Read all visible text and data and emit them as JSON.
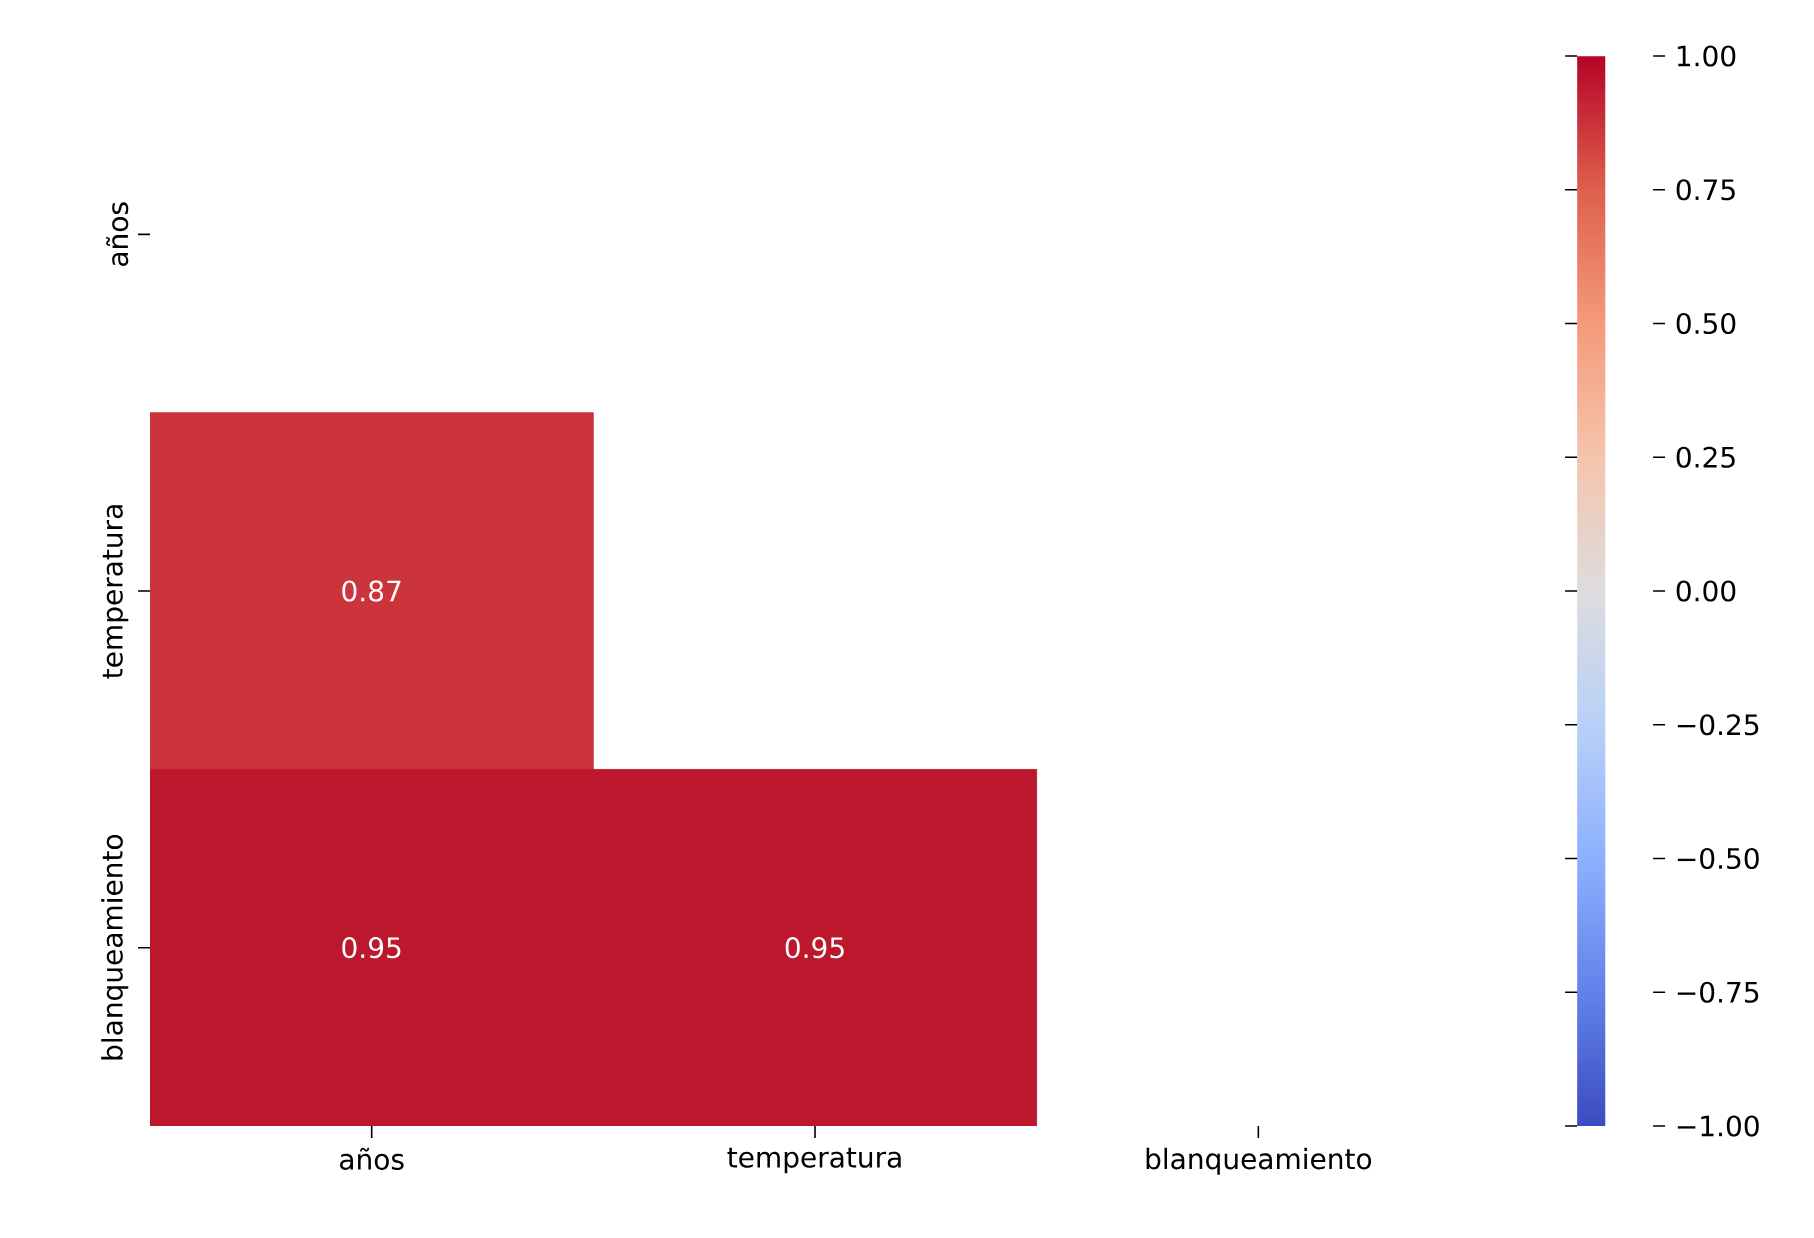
{
  "chart_data": {
    "type": "heatmap",
    "categories": [
      "años",
      "temperatura",
      "blanqueamiento"
    ],
    "y_categories": [
      "años",
      "temperatura",
      "blanqueamiento"
    ],
    "cells": [
      [
        null,
        null,
        null
      ],
      [
        0.87,
        null,
        null
      ],
      [
        0.95,
        0.95,
        null
      ]
    ],
    "data_labels": true,
    "clim": [
      -1,
      1
    ],
    "cticks": [
      {
        "value": -1,
        "label": "−1.00"
      },
      {
        "value": -0.75,
        "label": "−0.75"
      },
      {
        "value": -0.5,
        "label": "−0.50"
      },
      {
        "value": -0.25,
        "label": "−0.25"
      },
      {
        "value": 0,
        "label": "0.00"
      },
      {
        "value": 0.25,
        "label": "0.25"
      },
      {
        "value": 0.5,
        "label": "0.50"
      },
      {
        "value": 0.75,
        "label": "0.75"
      },
      {
        "value": 1,
        "label": "1.00"
      }
    ]
  }
}
